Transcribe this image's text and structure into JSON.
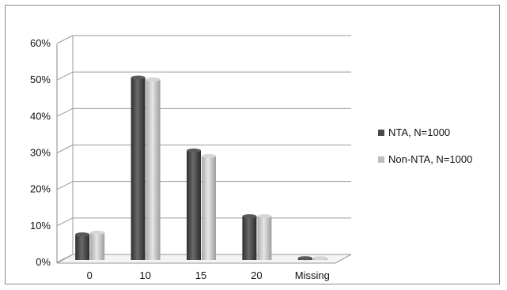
{
  "chart_data": {
    "type": "bar",
    "title": "",
    "xlabel": "",
    "ylabel": "",
    "categories": [
      "0",
      "10",
      "15",
      "20",
      "Missing"
    ],
    "series": [
      {
        "name": "NTA, N=1000",
        "values": [
          7,
          50,
          30,
          12,
          0.5
        ],
        "color": "#4a4a4a"
      },
      {
        "name": "Non-NTA, N=1000",
        "values": [
          7.5,
          49.5,
          28.5,
          12,
          0.5
        ],
        "color": "#bdbdbd"
      }
    ],
    "yticks": [
      "0%",
      "10%",
      "20%",
      "30%",
      "40%",
      "50%",
      "60%"
    ],
    "ylim": [
      0,
      60
    ],
    "grid": true,
    "legend_position": "right",
    "style": "3d-cylinder-like bars"
  }
}
